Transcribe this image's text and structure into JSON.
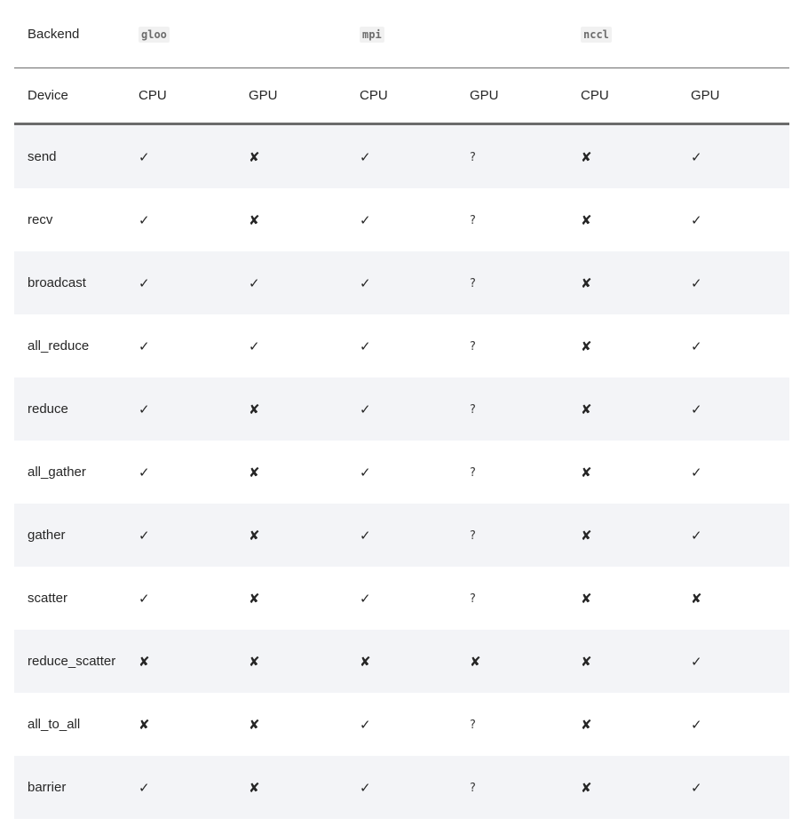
{
  "table": {
    "backend_label": "Backend",
    "backends": [
      "gloo",
      "mpi",
      "nccl"
    ],
    "device_label": "Device",
    "devices": [
      "CPU",
      "GPU",
      "CPU",
      "GPU",
      "CPU",
      "GPU"
    ],
    "rows": [
      {
        "op": "send",
        "cells": [
          "✓",
          "✘",
          "✓",
          "?",
          "✘",
          "✓"
        ]
      },
      {
        "op": "recv",
        "cells": [
          "✓",
          "✘",
          "✓",
          "?",
          "✘",
          "✓"
        ]
      },
      {
        "op": "broadcast",
        "cells": [
          "✓",
          "✓",
          "✓",
          "?",
          "✘",
          "✓"
        ]
      },
      {
        "op": "all_reduce",
        "cells": [
          "✓",
          "✓",
          "✓",
          "?",
          "✘",
          "✓"
        ]
      },
      {
        "op": "reduce",
        "cells": [
          "✓",
          "✘",
          "✓",
          "?",
          "✘",
          "✓"
        ]
      },
      {
        "op": "all_gather",
        "cells": [
          "✓",
          "✘",
          "✓",
          "?",
          "✘",
          "✓"
        ]
      },
      {
        "op": "gather",
        "cells": [
          "✓",
          "✘",
          "✓",
          "?",
          "✘",
          "✓"
        ]
      },
      {
        "op": "scatter",
        "cells": [
          "✓",
          "✘",
          "✓",
          "?",
          "✘",
          "✘"
        ]
      },
      {
        "op": "reduce_scatter",
        "cells": [
          "✘",
          "✘",
          "✘",
          "✘",
          "✘",
          "✓"
        ]
      },
      {
        "op": "all_to_all",
        "cells": [
          "✘",
          "✘",
          "✓",
          "?",
          "✘",
          "✓"
        ]
      },
      {
        "op": "barrier",
        "cells": [
          "✓",
          "✘",
          "✓",
          "?",
          "✘",
          "✓"
        ]
      }
    ]
  },
  "colors": {
    "text": "#262626",
    "stripe": "#f3f4f7",
    "rule": "#6b6b6b",
    "code_text": "#6c6c6c",
    "code_bg": "#f1f1f1"
  }
}
